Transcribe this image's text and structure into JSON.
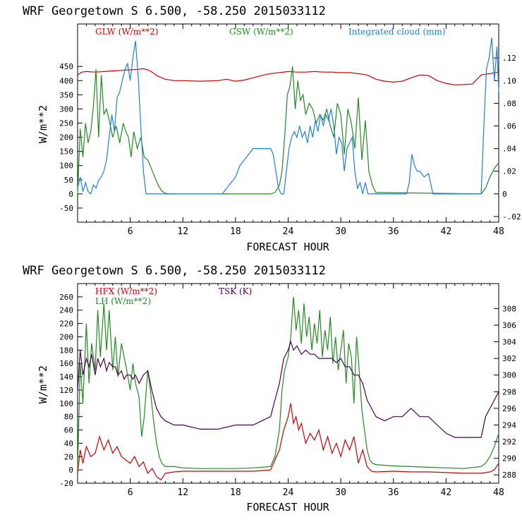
{
  "colors": {
    "red": "#cc0000",
    "green": "#228b22",
    "blue": "#1e7fdc",
    "purple": "#4b0050"
  },
  "chart_data": [
    {
      "type": "line",
      "title": "WRF   Georgetown S   6.500, -58.250  2015033112",
      "xlabel": "FORECAST HOUR",
      "ylabel": "W/m**2",
      "xlim": [
        0,
        48
      ],
      "ylim": [
        -100,
        600
      ],
      "y2lim": [
        -0.025,
        0.15
      ],
      "xticks": [
        "6",
        "12",
        "18",
        "24",
        "30",
        "36",
        "42",
        "48"
      ],
      "yticks": [
        "-50",
        "0",
        "50",
        "100",
        "150",
        "200",
        "250",
        "300",
        "350",
        "400",
        "450"
      ],
      "y2ticks": [
        "-.02",
        "0",
        ".02",
        ".04",
        ".06",
        ".08",
        ".10",
        ".12"
      ],
      "series": [
        {
          "name": "GLW (W/m**2)",
          "axis": "left",
          "color": "red",
          "x": [
            0,
            0.5,
            1,
            2,
            3,
            4,
            5,
            6,
            7,
            7.5,
            8,
            8.5,
            9,
            10,
            11,
            12,
            14,
            16,
            17,
            18,
            19,
            20,
            21,
            22,
            23,
            24,
            25,
            26,
            27,
            28,
            29,
            30,
            31,
            32,
            33,
            34,
            35,
            36,
            37,
            38,
            39,
            40,
            41,
            42,
            43,
            44,
            45,
            46,
            47,
            48
          ],
          "y": [
            420,
            430,
            432,
            430,
            432,
            434,
            436,
            438,
            440,
            442,
            438,
            430,
            418,
            405,
            400,
            400,
            398,
            400,
            405,
            398,
            402,
            410,
            418,
            425,
            428,
            432,
            430,
            430,
            432,
            430,
            430,
            428,
            428,
            425,
            420,
            405,
            398,
            395,
            398,
            410,
            420,
            418,
            400,
            390,
            385,
            386,
            388,
            420,
            425,
            430
          ]
        },
        {
          "name": "GSW (W/m**2)",
          "axis": "left",
          "color": "green",
          "x": [
            0,
            0.3,
            0.6,
            0.9,
            1.2,
            1.5,
            1.8,
            2.1,
            2.4,
            2.7,
            3.0,
            3.3,
            3.6,
            4.0,
            4.4,
            4.8,
            5.2,
            5.5,
            5.8,
            6.1,
            6.4,
            6.8,
            7.2,
            7.6,
            8.0,
            8.4,
            8.8,
            9.2,
            9.6,
            10.0,
            10.5,
            22,
            22.5,
            23,
            23.3,
            23.6,
            23.9,
            24.2,
            24.5,
            24.8,
            25.1,
            25.4,
            25.7,
            26.0,
            26.4,
            26.8,
            27.2,
            27.6,
            28.0,
            28.4,
            28.8,
            29.2,
            29.6,
            30.0,
            30.4,
            30.8,
            31.2,
            31.6,
            32.0,
            32.4,
            32.8,
            33.2,
            33.6,
            34.0,
            46,
            46.5,
            47,
            47.5,
            48
          ],
          "y": [
            0,
            230,
            130,
            250,
            180,
            220,
            310,
            440,
            200,
            420,
            280,
            300,
            260,
            200,
            240,
            180,
            250,
            220,
            200,
            130,
            220,
            160,
            200,
            130,
            120,
            90,
            60,
            30,
            10,
            2,
            0,
            0,
            5,
            30,
            80,
            200,
            350,
            380,
            450,
            300,
            400,
            330,
            350,
            280,
            320,
            300,
            250,
            280,
            260,
            300,
            240,
            200,
            320,
            280,
            140,
            300,
            250,
            160,
            340,
            120,
            260,
            80,
            30,
            5,
            0,
            20,
            60,
            90,
            110
          ]
        },
        {
          "name": "Integrated cloud (mm)",
          "axis": "right",
          "color": "blue",
          "x": [
            0,
            0.3,
            0.6,
            0.9,
            1.2,
            1.5,
            1.8,
            2.1,
            2.4,
            2.7,
            3.0,
            3.3,
            3.6,
            3.9,
            4.2,
            4.5,
            4.8,
            5.1,
            5.4,
            5.7,
            6.0,
            6.3,
            6.6,
            6.9,
            7.2,
            7.5,
            7.8,
            8.1,
            16.5,
            17,
            17.5,
            18,
            18.5,
            19,
            19.5,
            20,
            20.5,
            21,
            21.5,
            22,
            22.3,
            22.6,
            22.9,
            23.2,
            23.5,
            23.8,
            24.1,
            24.4,
            24.7,
            25.0,
            25.3,
            25.6,
            25.9,
            26.2,
            26.5,
            26.8,
            27.1,
            27.4,
            27.7,
            28.0,
            28.3,
            28.6,
            28.9,
            29.2,
            29.5,
            29.8,
            30.1,
            30.4,
            30.7,
            31.0,
            31.3,
            31.6,
            31.9,
            32.2,
            32.5,
            32.8,
            33.1,
            37.5,
            37.8,
            38.1,
            38.4,
            38.7,
            39.0,
            39.5,
            40.0,
            40.5,
            46,
            46.3,
            46.6,
            46.9,
            47.2,
            47.5,
            47.8,
            48
          ],
          "y": [
            0.005,
            0.015,
            0.002,
            0.01,
            0.002,
            0.0,
            0.008,
            0.005,
            0.012,
            0.015,
            0.02,
            0.03,
            0.05,
            0.07,
            0.055,
            0.085,
            0.09,
            0.1,
            0.11,
            0.115,
            0.1,
            0.12,
            0.135,
            0.105,
            0.06,
            0.02,
            0.0,
            0.0,
            0.0,
            0.005,
            0.01,
            0.015,
            0.025,
            0.03,
            0.035,
            0.04,
            0.04,
            0.04,
            0.04,
            0.04,
            0.035,
            0.02,
            0.005,
            0.0,
            0.0,
            0.02,
            0.04,
            0.05,
            0.055,
            0.05,
            0.06,
            0.05,
            0.055,
            0.045,
            0.06,
            0.05,
            0.065,
            0.055,
            0.07,
            0.06,
            0.07,
            0.065,
            0.075,
            0.06,
            0.035,
            0.05,
            0.045,
            0.02,
            0.04,
            0.045,
            0.05,
            0.02,
            0.005,
            0.01,
            0.0,
            0.01,
            0.0,
            0.0,
            0.01,
            0.035,
            0.025,
            0.02,
            0.02,
            0.015,
            0.018,
            0.0,
            0.0,
            0.06,
            0.11,
            0.12,
            0.138,
            0.1,
            0.13,
            0.09
          ]
        }
      ]
    },
    {
      "type": "line",
      "title": "WRF   Georgetown S   6.500, -58.250  2015033112",
      "xlabel": "FORECAST HOUR",
      "ylabel": "W/m**2",
      "xlim": [
        0,
        48
      ],
      "ylim": [
        -20,
        280
      ],
      "y2lim": [
        287,
        311
      ],
      "xticks": [
        "6",
        "12",
        "18",
        "24",
        "30",
        "36",
        "42",
        "48"
      ],
      "yticks": [
        "-20",
        "0",
        "20",
        "40",
        "60",
        "80",
        "100",
        "120",
        "140",
        "160",
        "180",
        "200",
        "220",
        "240",
        "260"
      ],
      "y2ticks": [
        "288",
        "290",
        "292",
        "294",
        "296",
        "298",
        "300",
        "302",
        "304",
        "306",
        "308"
      ],
      "series": [
        {
          "name": "HFX (W/m**2)",
          "axis": "left",
          "color": "red",
          "x": [
            0,
            0.3,
            0.6,
            1.0,
            1.5,
            2.0,
            2.5,
            3.0,
            3.5,
            4.0,
            4.5,
            5.0,
            5.5,
            6.0,
            6.5,
            7.0,
            7.5,
            8.0,
            8.5,
            9.0,
            9.5,
            10.0,
            11,
            12,
            14,
            16,
            18,
            20,
            21,
            22,
            22.5,
            23,
            23.5,
            24.0,
            24.3,
            24.6,
            24.9,
            25.2,
            25.5,
            26.0,
            26.5,
            27.0,
            27.5,
            28.0,
            28.5,
            29.0,
            29.5,
            30.0,
            30.5,
            31.0,
            31.5,
            32.0,
            32.5,
            33.0,
            33.5,
            34,
            36,
            38,
            40,
            42,
            44,
            46,
            46.5,
            47,
            47.5,
            48
          ],
          "y": [
            -5,
            30,
            10,
            35,
            20,
            25,
            50,
            30,
            45,
            25,
            35,
            20,
            15,
            10,
            20,
            5,
            12,
            -5,
            2,
            -10,
            -15,
            -5,
            -3,
            -2,
            -2,
            -2,
            -2,
            -2,
            -1,
            0,
            15,
            30,
            60,
            80,
            100,
            70,
            80,
            60,
            70,
            40,
            55,
            45,
            60,
            30,
            50,
            25,
            40,
            20,
            45,
            30,
            50,
            10,
            30,
            5,
            -2,
            -3,
            -2,
            -3,
            -3,
            -4,
            -5,
            -5,
            -4,
            -3,
            0,
            10
          ]
        },
        {
          "name": "LH  (W/m**2)",
          "axis": "left",
          "color": "green",
          "x": [
            0,
            0.3,
            0.6,
            1.0,
            1.3,
            1.6,
            2.0,
            2.3,
            2.6,
            3.0,
            3.3,
            3.6,
            4.0,
            4.3,
            4.6,
            5.0,
            5.3,
            5.6,
            6.0,
            6.3,
            6.6,
            7.0,
            7.3,
            7.6,
            8.0,
            8.3,
            8.6,
            9.0,
            9.3,
            9.6,
            10.0,
            11,
            12,
            14,
            16,
            18,
            20,
            22,
            22.5,
            23,
            23.3,
            23.6,
            24.0,
            24.3,
            24.6,
            24.9,
            25.2,
            25.5,
            25.8,
            26.1,
            26.4,
            26.7,
            27.0,
            27.3,
            27.6,
            27.9,
            28.2,
            28.5,
            28.8,
            29.1,
            29.4,
            29.7,
            30.0,
            30.3,
            30.6,
            30.9,
            31.2,
            31.5,
            31.8,
            32.1,
            32.4,
            32.7,
            33.0,
            33.3,
            33.6,
            34,
            36,
            38,
            40,
            42,
            44,
            46,
            46.5,
            47,
            47.5,
            48
          ],
          "y": [
            0,
            160,
            100,
            220,
            130,
            190,
            150,
            240,
            170,
            250,
            180,
            240,
            150,
            200,
            140,
            190,
            170,
            150,
            120,
            160,
            130,
            110,
            50,
            80,
            150,
            120,
            80,
            40,
            20,
            10,
            5,
            5,
            3,
            2,
            2,
            2,
            3,
            5,
            20,
            60,
            120,
            150,
            170,
            200,
            260,
            210,
            240,
            190,
            250,
            200,
            230,
            180,
            220,
            190,
            240,
            170,
            210,
            180,
            230,
            160,
            200,
            150,
            180,
            210,
            130,
            190,
            170,
            100,
            200,
            150,
            90,
            60,
            30,
            15,
            10,
            8,
            6,
            5,
            4,
            3,
            2,
            5,
            10,
            20,
            35,
            55
          ]
        },
        {
          "name": "TSK (K)",
          "axis": "right",
          "color": "purple",
          "x": [
            0,
            0.3,
            0.6,
            1.0,
            1.3,
            1.6,
            2.0,
            2.3,
            2.6,
            3.0,
            3.3,
            3.6,
            4.0,
            4.3,
            4.6,
            5.0,
            5.3,
            5.6,
            6.0,
            6.3,
            6.6,
            7.0,
            7.5,
            8.0,
            8.5,
            9.0,
            9.5,
            10.0,
            11,
            12,
            14,
            16,
            18,
            20,
            21,
            22,
            22.5,
            23,
            23.5,
            24,
            24.3,
            24.6,
            25,
            25.5,
            26,
            26.5,
            27,
            27.5,
            28,
            28.5,
            29,
            29.5,
            30,
            30.5,
            31,
            31.5,
            32,
            32.5,
            33,
            33.5,
            34,
            35,
            36,
            37,
            38,
            39,
            40,
            41,
            42,
            43,
            44,
            45,
            46,
            46.5,
            47,
            47.5,
            48
          ],
          "y": [
            298,
            303,
            300,
            302,
            301,
            302.5,
            300,
            302,
            301,
            302,
            300.5,
            301.5,
            301,
            301,
            300,
            300.5,
            299.5,
            300,
            300,
            299.5,
            300,
            299,
            300,
            300.5,
            298,
            296,
            295,
            294.5,
            294,
            294,
            293.5,
            293.5,
            294,
            294,
            294.5,
            295,
            297,
            299,
            302,
            303,
            304,
            303,
            303.5,
            302.5,
            303,
            302.5,
            302.5,
            302,
            302,
            302,
            302,
            301.5,
            302,
            301,
            301,
            300,
            300,
            299,
            297,
            296,
            295,
            294.5,
            295,
            295,
            296,
            295,
            295,
            294,
            293,
            292.5,
            292.5,
            292.5,
            292.5,
            295,
            296,
            297,
            298
          ]
        }
      ]
    }
  ]
}
